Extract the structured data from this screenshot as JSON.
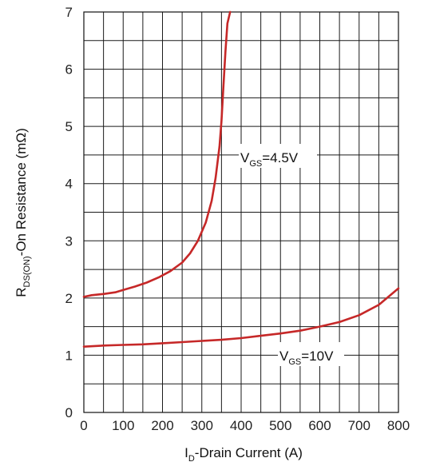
{
  "chart_data": {
    "type": "line",
    "title": "",
    "xlabel": {
      "main": "I",
      "sub": "D",
      "rest": "-Drain Current (A)"
    },
    "ylabel": {
      "main": "R",
      "sub": "DS(ON)",
      "rest": "-On Resistance (mΩ)"
    },
    "xlim": [
      0,
      800
    ],
    "ylim": [
      0,
      7
    ],
    "xticks": [
      "0",
      "100",
      "200",
      "300",
      "400",
      "500",
      "600",
      "700",
      "800"
    ],
    "yticks": [
      "0",
      "1",
      "2",
      "3",
      "4",
      "5",
      "6",
      "7"
    ],
    "grid": true,
    "series_color": "#c62828",
    "series": [
      {
        "name": {
          "main": "V",
          "sub": "GS",
          "rest": "=4.5V"
        },
        "x": [
          0,
          20,
          50,
          80,
          100,
          130,
          160,
          190,
          220,
          250,
          270,
          290,
          310,
          325,
          335,
          345,
          350,
          355,
          360,
          365,
          372
        ],
        "y": [
          2.02,
          2.05,
          2.07,
          2.1,
          2.14,
          2.2,
          2.27,
          2.36,
          2.47,
          2.62,
          2.78,
          3.0,
          3.32,
          3.7,
          4.1,
          4.65,
          5.1,
          5.7,
          6.3,
          6.8,
          7.0
        ]
      },
      {
        "name": {
          "main": "V",
          "sub": "GS",
          "rest": "=10V"
        },
        "x": [
          0,
          50,
          100,
          150,
          200,
          250,
          300,
          350,
          400,
          450,
          500,
          550,
          600,
          650,
          700,
          750,
          800
        ],
        "y": [
          1.15,
          1.17,
          1.18,
          1.19,
          1.21,
          1.23,
          1.25,
          1.27,
          1.3,
          1.34,
          1.38,
          1.43,
          1.5,
          1.58,
          1.7,
          1.88,
          2.17
        ]
      }
    ]
  }
}
